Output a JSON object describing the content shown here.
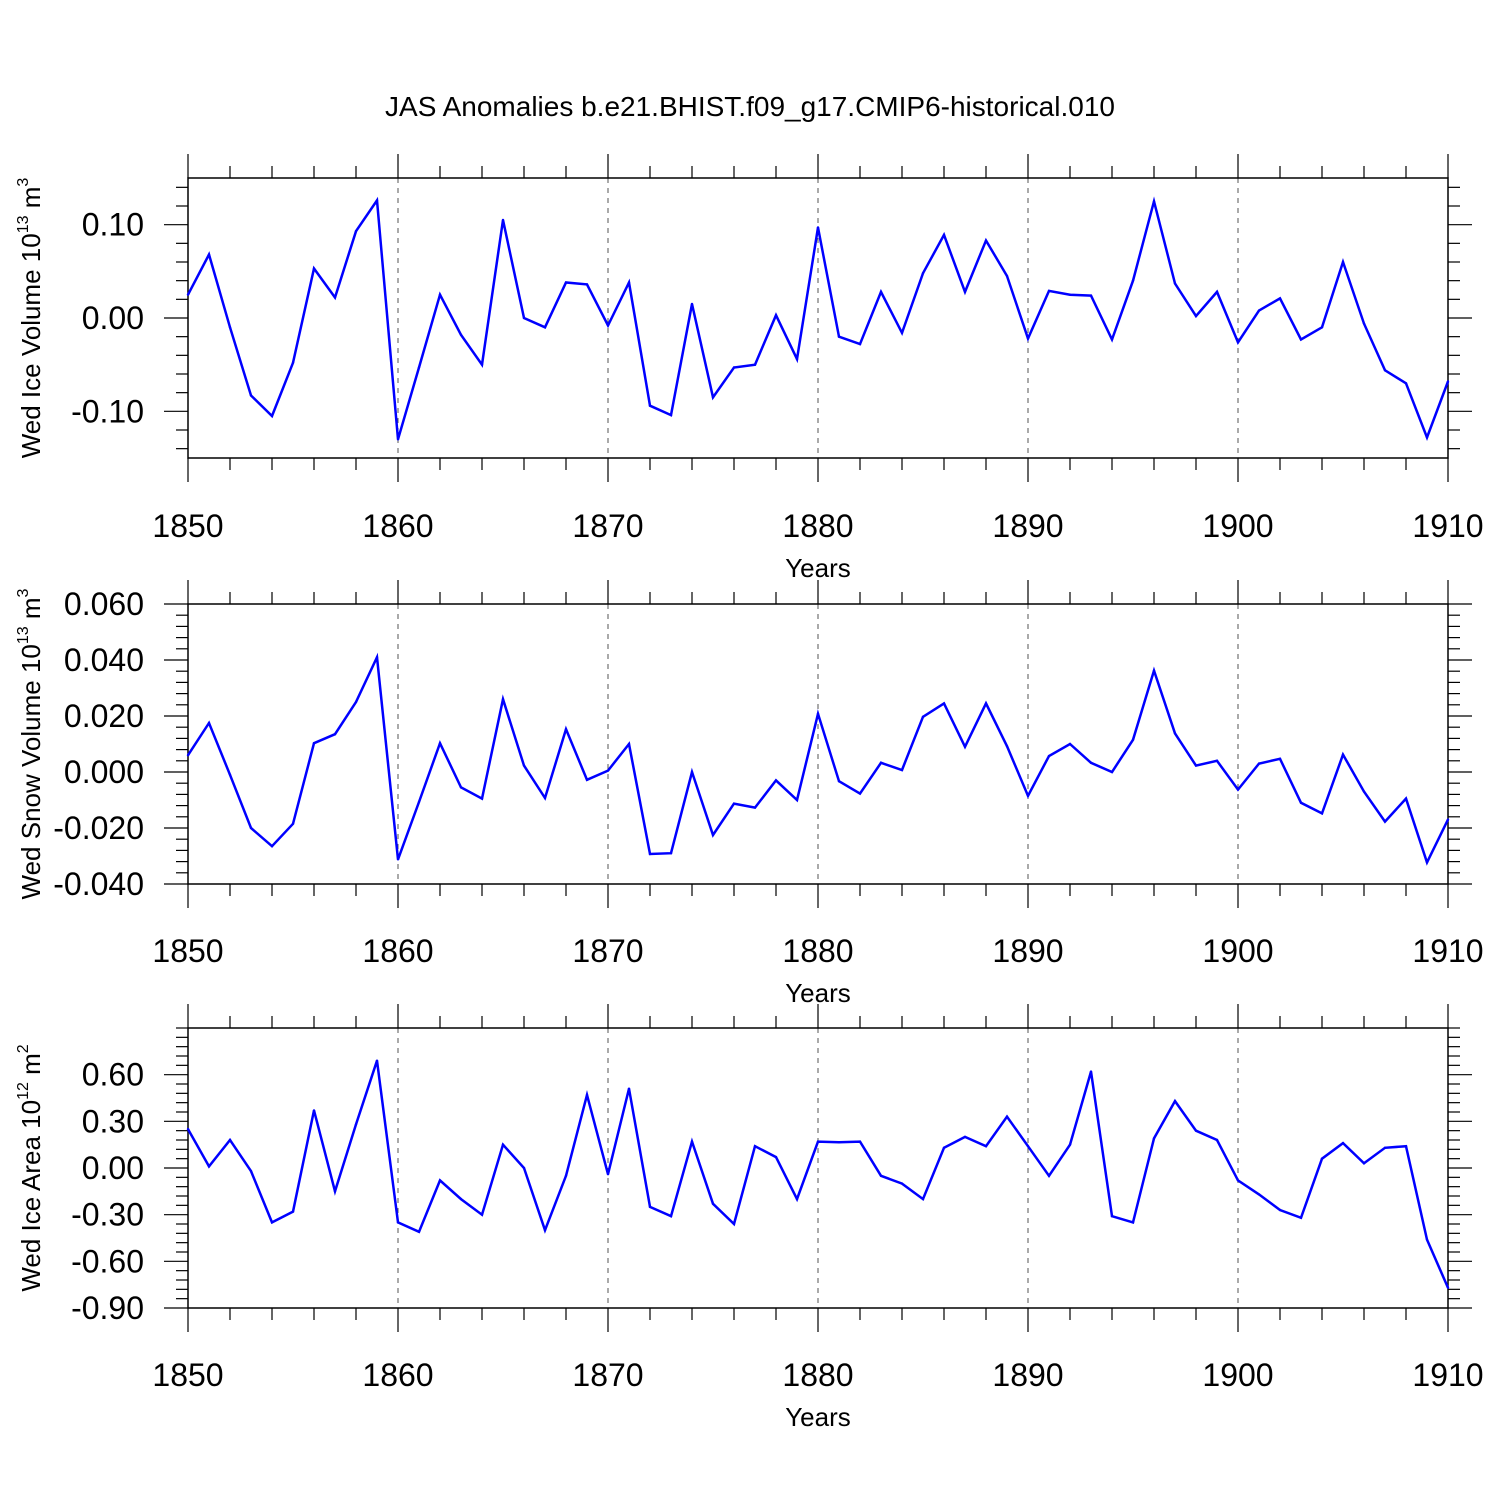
{
  "title": "JAS Anomalies b.e21.BHIST.f09_g17.CMIP6-historical.010",
  "colors": {
    "line": "#0000ff",
    "axis": "#000000",
    "grid": "#555555"
  },
  "chart_data": [
    {
      "type": "line",
      "ylabel_main": "Wed Ice Volume 10",
      "ylabel_exp": "13",
      "ylabel_unit": " m",
      "ylabel_unit_exp": "3",
      "xlabel": "Years",
      "xlim": [
        1850,
        1910
      ],
      "ylim": [
        -0.15,
        0.15
      ],
      "x_ticks": [
        "1850",
        "1860",
        "1870",
        "1880",
        "1890",
        "1900",
        "1910"
      ],
      "y_ticks": [
        {
          "value": 0.1,
          "label": "0.10"
        },
        {
          "value": 0.0,
          "label": "0.00"
        },
        {
          "value": -0.1,
          "label": "-0.10"
        }
      ],
      "x": [
        1850,
        1851,
        1852,
        1853,
        1854,
        1855,
        1856,
        1857,
        1858,
        1859,
        1860,
        1861,
        1862,
        1863,
        1864,
        1865,
        1866,
        1867,
        1868,
        1869,
        1870,
        1871,
        1872,
        1873,
        1874,
        1875,
        1876,
        1877,
        1878,
        1879,
        1880,
        1881,
        1882,
        1883,
        1884,
        1885,
        1886,
        1887,
        1888,
        1889,
        1890,
        1891,
        1892,
        1893,
        1894,
        1895,
        1896,
        1897,
        1898,
        1899,
        1900,
        1901,
        1902,
        1903,
        1904,
        1905,
        1906,
        1907,
        1908,
        1909,
        1910
      ],
      "values": [
        0.025,
        0.068,
        -0.01,
        -0.083,
        -0.105,
        -0.048,
        0.053,
        0.022,
        0.093,
        0.126,
        -0.13,
        -0.053,
        0.025,
        -0.018,
        -0.05,
        0.105,
        0.0,
        -0.01,
        0.038,
        0.036,
        -0.008,
        0.038,
        -0.094,
        -0.104,
        0.015,
        -0.085,
        -0.053,
        -0.05,
        0.003,
        -0.044,
        0.097,
        -0.02,
        -0.028,
        0.028,
        -0.016,
        0.048,
        0.089,
        0.028,
        0.083,
        0.045,
        -0.022,
        0.029,
        0.025,
        0.024,
        -0.023,
        0.04,
        0.125,
        0.037,
        0.002,
        0.028,
        -0.026,
        0.008,
        0.021,
        -0.023,
        -0.01,
        0.06,
        -0.006,
        -0.056,
        -0.07,
        -0.128,
        -0.068
      ]
    },
    {
      "type": "line",
      "ylabel_main": "Wed Snow Volume 10",
      "ylabel_exp": "13",
      "ylabel_unit": " m",
      "ylabel_unit_exp": "3",
      "xlabel": "Years",
      "xlim": [
        1850,
        1910
      ],
      "ylim": [
        -0.04,
        0.06
      ],
      "x_ticks": [
        "1850",
        "1860",
        "1870",
        "1880",
        "1890",
        "1900",
        "1910"
      ],
      "y_ticks": [
        {
          "value": 0.06,
          "label": "0.060"
        },
        {
          "value": 0.04,
          "label": "0.040"
        },
        {
          "value": 0.02,
          "label": "0.020"
        },
        {
          "value": 0.0,
          "label": "0.000"
        },
        {
          "value": -0.02,
          "label": "-0.020"
        },
        {
          "value": -0.04,
          "label": "-0.040"
        }
      ],
      "x": [
        1850,
        1851,
        1852,
        1853,
        1854,
        1855,
        1856,
        1857,
        1858,
        1859,
        1860,
        1861,
        1862,
        1863,
        1864,
        1865,
        1866,
        1867,
        1868,
        1869,
        1870,
        1871,
        1872,
        1873,
        1874,
        1875,
        1876,
        1877,
        1878,
        1879,
        1880,
        1881,
        1882,
        1883,
        1884,
        1885,
        1886,
        1887,
        1888,
        1889,
        1890,
        1891,
        1892,
        1893,
        1894,
        1895,
        1896,
        1897,
        1898,
        1899,
        1900,
        1901,
        1902,
        1903,
        1904,
        1905,
        1906,
        1907,
        1908,
        1909,
        1910
      ],
      "values": [
        0.006,
        0.0175,
        -0.001,
        -0.02,
        -0.0265,
        -0.0185,
        0.0103,
        0.0135,
        0.025,
        0.041,
        -0.0312,
        -0.0107,
        0.0103,
        -0.0055,
        -0.0095,
        0.026,
        0.0023,
        -0.0093,
        0.0153,
        -0.0028,
        0.0005,
        0.01,
        -0.0293,
        -0.029,
        0.0,
        -0.0225,
        -0.0113,
        -0.0127,
        -0.003,
        -0.01,
        0.0208,
        -0.0033,
        -0.0077,
        0.0033,
        0.0007,
        0.0197,
        0.0245,
        0.009,
        0.0245,
        0.0092,
        -0.0085,
        0.0057,
        0.01,
        0.0033,
        0.0,
        0.0115,
        0.0362,
        0.0138,
        0.0023,
        0.004,
        -0.0063,
        0.003,
        0.0047,
        -0.011,
        -0.0148,
        0.0062,
        -0.007,
        -0.0177,
        -0.0095,
        -0.0323,
        -0.017
      ]
    },
    {
      "type": "line",
      "ylabel_main": "Wed Ice Area 10",
      "ylabel_exp": "12",
      "ylabel_unit": " m",
      "ylabel_unit_exp": "2",
      "xlabel": "Years",
      "xlim": [
        1850,
        1910
      ],
      "ylim": [
        -0.9,
        0.9
      ],
      "x_ticks": [
        "1850",
        "1860",
        "1870",
        "1880",
        "1890",
        "1900",
        "1910"
      ],
      "y_ticks": [
        {
          "value": 0.6,
          "label": "0.60"
        },
        {
          "value": 0.3,
          "label": "0.30"
        },
        {
          "value": 0.0,
          "label": "0.00"
        },
        {
          "value": -0.3,
          "label": "-0.30"
        },
        {
          "value": -0.6,
          "label": "-0.60"
        },
        {
          "value": -0.9,
          "label": "-0.90"
        }
      ],
      "x": [
        1850,
        1851,
        1852,
        1853,
        1854,
        1855,
        1856,
        1857,
        1858,
        1859,
        1860,
        1861,
        1862,
        1863,
        1864,
        1865,
        1866,
        1867,
        1868,
        1869,
        1870,
        1871,
        1872,
        1873,
        1874,
        1875,
        1876,
        1877,
        1878,
        1879,
        1880,
        1881,
        1882,
        1883,
        1884,
        1885,
        1886,
        1887,
        1888,
        1889,
        1890,
        1891,
        1892,
        1893,
        1894,
        1895,
        1896,
        1897,
        1898,
        1899,
        1900,
        1901,
        1902,
        1903,
        1904,
        1905,
        1906,
        1907,
        1908,
        1909,
        1910
      ],
      "values": [
        0.25,
        0.01,
        0.18,
        -0.02,
        -0.35,
        -0.28,
        0.37,
        -0.15,
        0.28,
        0.69,
        -0.35,
        -0.41,
        -0.08,
        -0.2,
        -0.3,
        0.15,
        0.0,
        -0.4,
        -0.05,
        0.47,
        -0.04,
        0.51,
        -0.25,
        -0.31,
        0.17,
        -0.23,
        -0.36,
        0.14,
        0.07,
        -0.2,
        0.17,
        0.165,
        0.17,
        -0.05,
        -0.1,
        -0.2,
        0.13,
        0.2,
        0.14,
        0.33,
        0.14,
        -0.05,
        0.15,
        0.62,
        -0.31,
        -0.35,
        0.19,
        0.43,
        0.24,
        0.18,
        -0.08,
        -0.17,
        -0.27,
        -0.32,
        0.06,
        0.16,
        0.03,
        0.13,
        0.14,
        -0.46,
        -0.77
      ]
    }
  ]
}
